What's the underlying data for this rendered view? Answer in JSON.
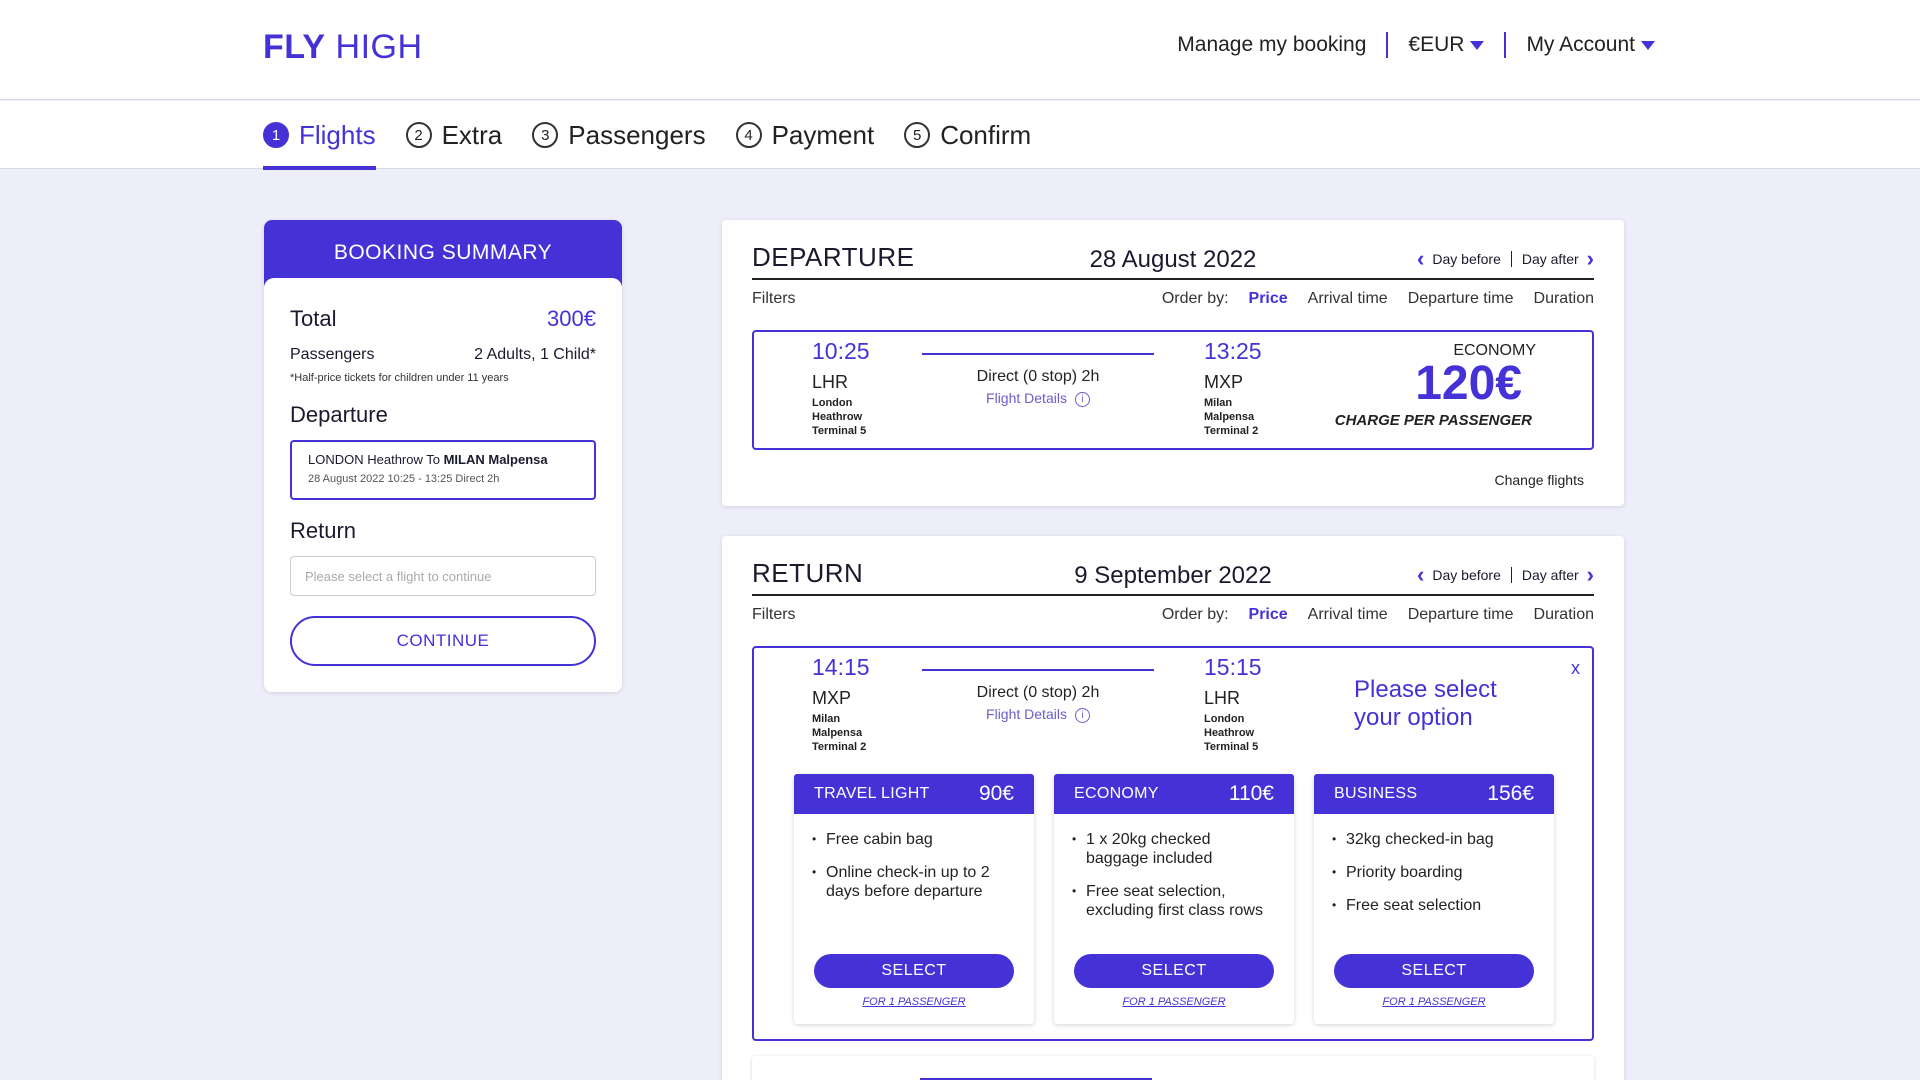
{
  "header": {
    "logo_bold": "FLY",
    "logo_light": "HIGH",
    "nav": {
      "manage": "Manage my booking",
      "currency": "€EUR",
      "account": "My Account"
    }
  },
  "stepper": [
    {
      "num": "1",
      "label": "Flights"
    },
    {
      "num": "2",
      "label": "Extra"
    },
    {
      "num": "3",
      "label": "Passengers"
    },
    {
      "num": "4",
      "label": "Payment"
    },
    {
      "num": "5",
      "label": "Confirm"
    }
  ],
  "summary": {
    "title": "BOOKING SUMMARY",
    "total_label": "Total",
    "total_value": "300€",
    "passengers_label": "Passengers",
    "passengers_value": "2 Adults, 1 Child*",
    "note": "*Half-price tickets for children under 11 years",
    "departure_title": "Departure",
    "dep_from": "LONDON Heathrow To ",
    "dep_to": "MILAN Malpensa",
    "dep_meta": "28 August 2022   10:25 - 13:25  Direct 2h",
    "return_title": "Return",
    "return_placeholder": "Please select a flight to continue",
    "continue": "CONTINUE"
  },
  "departure": {
    "title": "DEPARTURE",
    "date": "28 August 2022",
    "day_before": "Day before",
    "day_after": "Day after",
    "filters": "Filters",
    "order_by": "Order by:",
    "sort": {
      "price": "Price",
      "arrival": "Arrival time",
      "departure": "Departure time",
      "duration": "Duration"
    },
    "flight": {
      "dep_time": "10:25",
      "dep_code": "LHR",
      "dep_city_1": "London",
      "dep_city_2": "Heathrow",
      "dep_city_3": "Terminal 5",
      "direct": "Direct (0 stop) 2h",
      "details": "Flight Details",
      "arr_time": "13:25",
      "arr_code": "MXP",
      "arr_city_1": "Milan",
      "arr_city_2": "Malpensa",
      "arr_city_3": "Terminal 2",
      "class": "ECONOMY",
      "price": "120€",
      "charge": "CHARGE PER PASSENGER"
    },
    "change_flights": "Change flights"
  },
  "return": {
    "title": "RETURN",
    "date": "9 September 2022",
    "day_before": "Day before",
    "day_after": "Day after",
    "filters": "Filters",
    "order_by": "Order by:",
    "sort": {
      "price": "Price",
      "arrival": "Arrival time",
      "departure": "Departure time",
      "duration": "Duration"
    },
    "flight": {
      "dep_time": "14:15",
      "dep_code": "MXP",
      "dep_city_1": "Milan",
      "dep_city_2": "Malpensa",
      "dep_city_3": "Terminal 2",
      "direct": "Direct (0 stop) 2h",
      "details": "Flight Details",
      "arr_time": "15:15",
      "arr_code": "LHR",
      "arr_city_1": "London",
      "arr_city_2": "Heathrow",
      "arr_city_3": "Terminal 5",
      "please_1": "Please select",
      "please_2": "your option",
      "close": "x"
    },
    "fares": [
      {
        "name": "TRAVEL LIGHT",
        "price": "90€",
        "features": [
          "Free cabin bag",
          "Online check-in up to 2 days before departure"
        ],
        "select": "SELECT",
        "for": "FOR 1 PASSENGER"
      },
      {
        "name": "ECONOMY",
        "price": "110€",
        "features": [
          "1 x 20kg checked baggage included",
          "Free seat selection, excluding first class rows"
        ],
        "select": "SELECT",
        "for": "FOR 1 PASSENGER"
      },
      {
        "name": "BUSINESS",
        "price": "156€",
        "features": [
          "32kg checked-in bag",
          "Priority boarding",
          "Free seat selection"
        ],
        "select": "SELECT",
        "for": "FOR 1 PASSENGER"
      }
    ]
  },
  "colors": {
    "accent": "#4432d6",
    "background": "#eeeefa"
  }
}
